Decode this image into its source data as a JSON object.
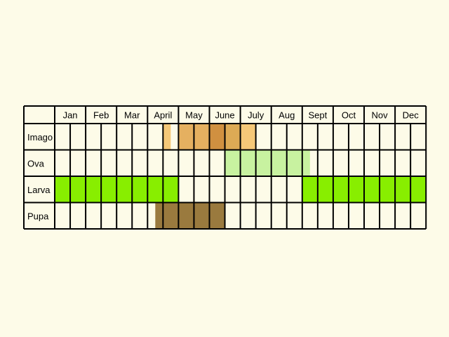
{
  "chart_data": {
    "type": "table",
    "months": [
      "Jan",
      "Feb",
      "Mar",
      "April",
      "May",
      "June",
      "July",
      "Aug",
      "Sept",
      "Oct",
      "Nov",
      "Dec"
    ],
    "slots_per_month": 2,
    "rows": [
      {
        "name": "Imago",
        "segments": [
          {
            "start": 3.5,
            "end": 3.75,
            "color": "#f5c878"
          },
          {
            "start": 4.0,
            "end": 5.0,
            "color": "#e5b060"
          },
          {
            "start": 5.0,
            "end": 5.5,
            "color": "#d09040"
          },
          {
            "start": 5.5,
            "end": 6.0,
            "color": "#ddaa55"
          },
          {
            "start": 6.0,
            "end": 6.5,
            "color": "#f5c878"
          }
        ]
      },
      {
        "name": "Ova",
        "segments": [
          {
            "start": 5.5,
            "end": 8.25,
            "color": "#c8f2a0"
          }
        ]
      },
      {
        "name": "Larva",
        "segments": [
          {
            "start": 0.0,
            "end": 4.0,
            "color": "#88ee00"
          },
          {
            "start": 8.0,
            "end": 12.0,
            "color": "#88ee00"
          }
        ]
      },
      {
        "name": "Pupa",
        "segments": [
          {
            "start": 3.25,
            "end": 5.5,
            "color": "#9a7a3e"
          }
        ]
      }
    ]
  }
}
